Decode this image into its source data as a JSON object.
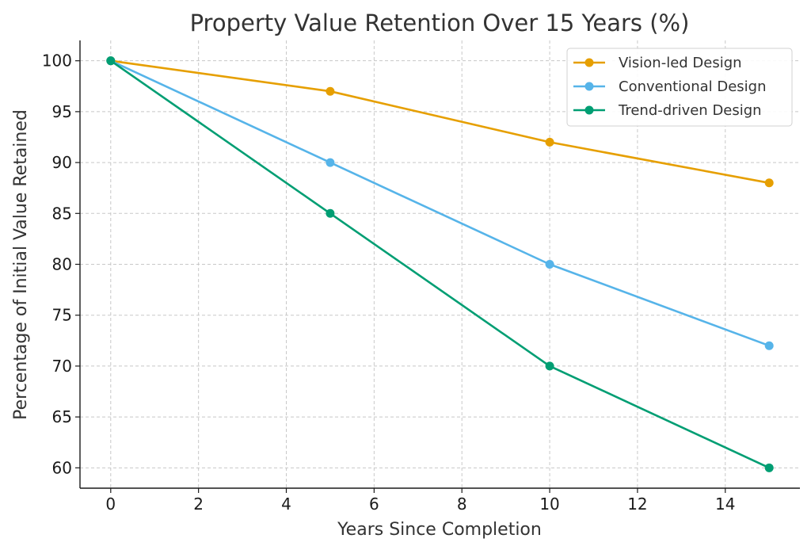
{
  "chart_data": {
    "type": "line",
    "title": "Property Value Retention Over 15 Years (%)",
    "xlabel": "Years Since Completion",
    "ylabel": "Percentage of Initial Value Retained",
    "xlim": [
      -0.7,
      15.7
    ],
    "ylim": [
      58,
      102
    ],
    "xticks": [
      0,
      2,
      4,
      6,
      8,
      10,
      12,
      14
    ],
    "yticks": [
      60,
      65,
      70,
      75,
      80,
      85,
      90,
      95,
      100
    ],
    "grid": true,
    "legend_position": "top-right",
    "x": [
      0,
      5,
      10,
      15
    ],
    "series": [
      {
        "name": "Vision-led Design",
        "values": [
          100,
          97,
          92,
          88
        ],
        "color": "#E69F00"
      },
      {
        "name": "Conventional Design",
        "values": [
          100,
          90,
          80,
          72
        ],
        "color": "#56B4E9"
      },
      {
        "name": "Trend-driven Design",
        "values": [
          100,
          85,
          70,
          60
        ],
        "color": "#009E73"
      }
    ]
  }
}
